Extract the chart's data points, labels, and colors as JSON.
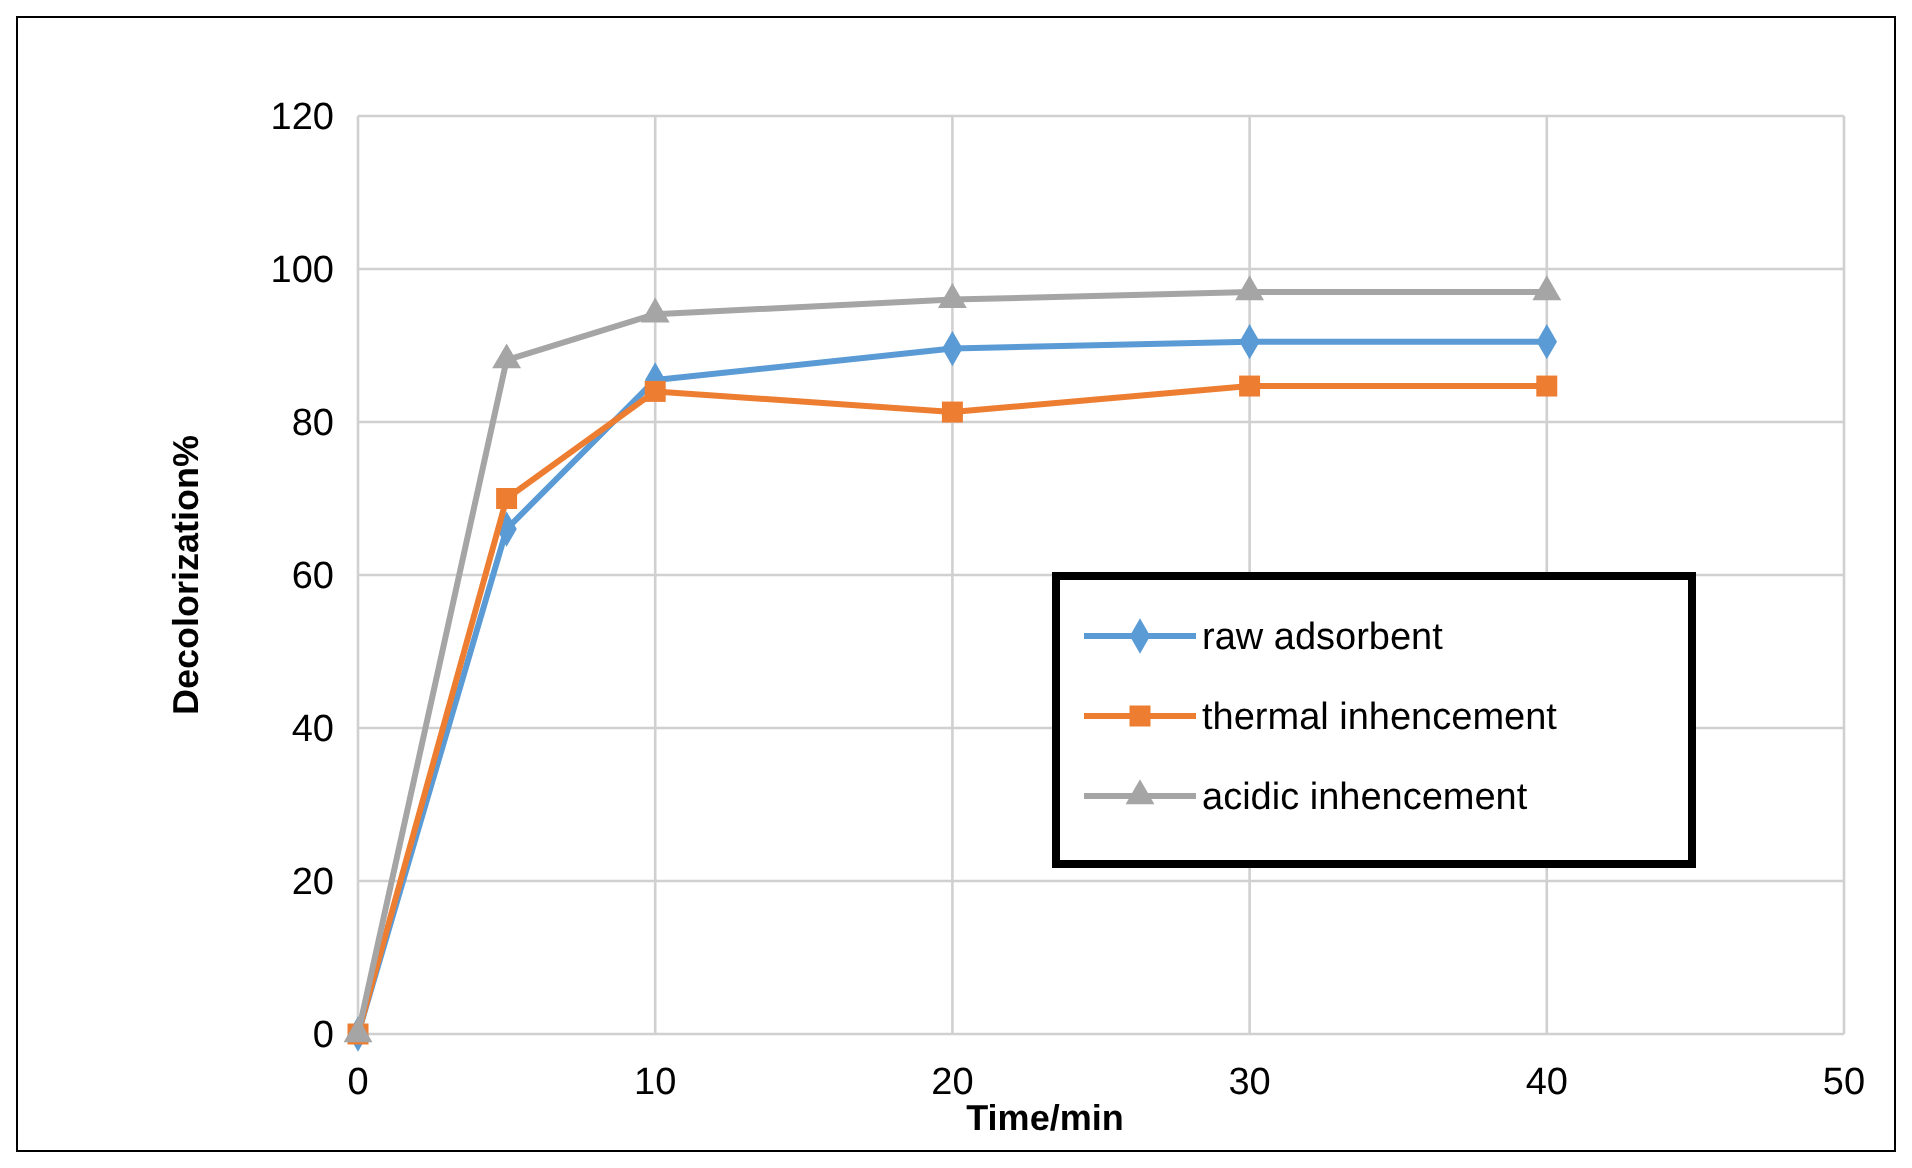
{
  "chart_data": {
    "type": "line",
    "xlabel": "Time/min",
    "ylabel": "Decolorization%",
    "x": [
      0,
      5,
      10,
      20,
      30,
      40
    ],
    "xlim": [
      0,
      50
    ],
    "xticks": [
      0,
      10,
      20,
      30,
      40,
      50
    ],
    "ylim": [
      0,
      120
    ],
    "yticks": [
      0,
      20,
      40,
      60,
      80,
      100,
      120
    ],
    "grid": true,
    "legend": "right",
    "line_style": "solid",
    "series": [
      {
        "name": "raw adsorbent",
        "color": "#5b9bd5",
        "marker": "diamond",
        "values": [
          0,
          66,
          85.5,
          89.6,
          90.5,
          90.5
        ]
      },
      {
        "name": "thermal inhencement",
        "color": "#ed7d31",
        "marker": "square",
        "values": [
          0,
          70,
          84,
          81.3,
          84.7,
          84.7
        ]
      },
      {
        "name": "acidic inhencement",
        "color": "#a5a5a5",
        "marker": "triangle",
        "values": [
          0,
          88.1,
          94.1,
          96,
          97,
          97
        ]
      }
    ]
  }
}
